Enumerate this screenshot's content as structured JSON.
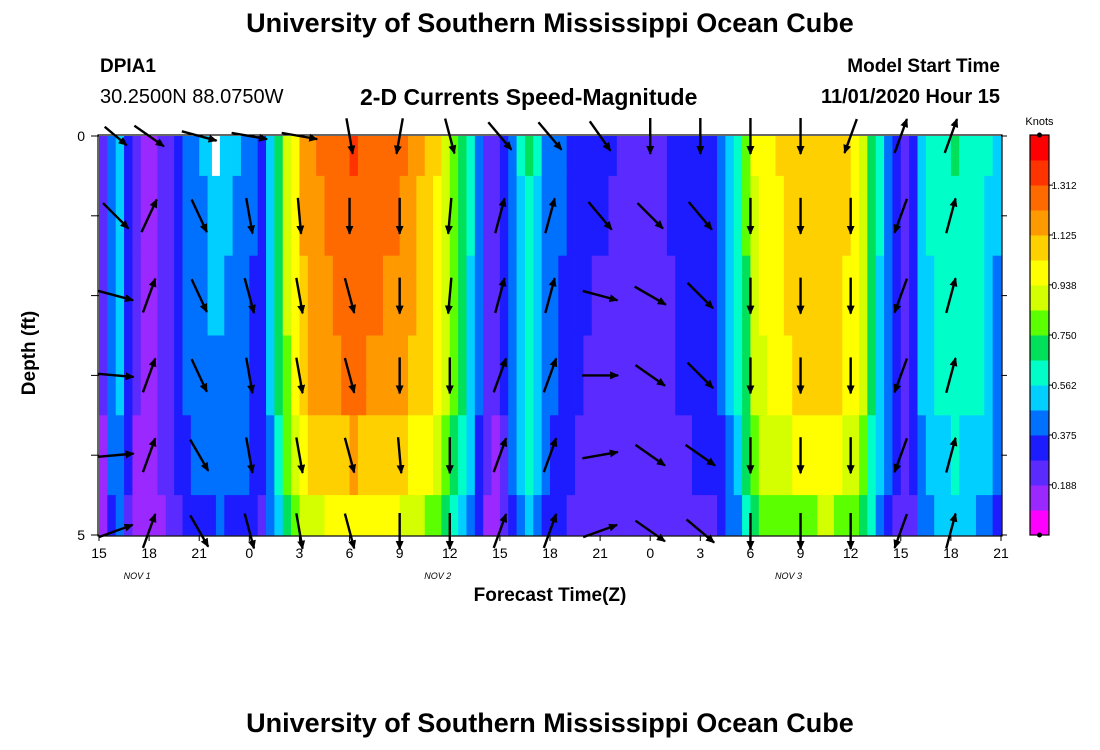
{
  "header": {
    "title": "University of Southern Mississippi Ocean Cube",
    "station": "DPIA1",
    "coords": "30.2500N 88.0750W",
    "subtitle": "2-D Currents Speed-Magnitude",
    "model_label": "Model Start Time",
    "model_time": "11/01/2020 Hour 15"
  },
  "footer": {
    "title": "University of Southern Mississippi Ocean Cube"
  },
  "chart_data": {
    "type": "heatmap",
    "xlabel": "Forecast Time(Z)",
    "ylabel": "Depth (ft)",
    "x_ticks": [
      "15",
      "18",
      "21",
      "0",
      "3",
      "6",
      "9",
      "12",
      "15",
      "18",
      "21",
      "0",
      "3",
      "6",
      "9",
      "12",
      "15",
      "18",
      "21"
    ],
    "date_labels": [
      {
        "label": "NOV 1",
        "tick_index": 1
      },
      {
        "label": "NOV 2",
        "tick_index": 7
      },
      {
        "label": "NOV 3",
        "tick_index": 14
      }
    ],
    "y_ticks": [
      "0",
      "5"
    ],
    "ylim": [
      0,
      5
    ],
    "x_hours": [
      0,
      54
    ],
    "depth_levels_ft": [
      0,
      1,
      2,
      3,
      4,
      5
    ],
    "colorbar": {
      "unit": "Knots",
      "ticks": [
        "1.312",
        "1.125",
        "0.938",
        "0.750",
        "0.562",
        "0.375",
        "0.188"
      ],
      "tick_values": [
        1.312,
        1.125,
        0.938,
        0.75,
        0.562,
        0.375,
        0.188
      ],
      "range": [
        0.0,
        1.5
      ],
      "colors": [
        "#ff00ff",
        "#9b28ff",
        "#5a2aff",
        "#1c1cff",
        "#0070ff",
        "#00cfff",
        "#00ffc8",
        "#00e05a",
        "#5cff00",
        "#d4ff00",
        "#ffff00",
        "#ffd000",
        "#ff9900",
        "#ff6a00",
        "#ff3300",
        "#ff0000"
      ]
    },
    "speed_profile": [
      {
        "h": 0,
        "s": 0.08
      },
      {
        "h": 0.5,
        "s": 0.35
      },
      {
        "h": 1,
        "s": 0.58
      },
      {
        "h": 1.6,
        "s": 0.42
      },
      {
        "h": 2.4,
        "s": 0.15
      },
      {
        "h": 3.2,
        "s": 0.17
      },
      {
        "h": 4.4,
        "s": 0.28
      },
      {
        "h": 5.5,
        "s": 0.44
      },
      {
        "h": 7,
        "s": 0.5
      },
      {
        "h": 8.7,
        "s": 0.46
      },
      {
        "h": 9.7,
        "s": 0.32
      },
      {
        "h": 10.3,
        "s": 0.55
      },
      {
        "h": 11.3,
        "s": 0.9
      },
      {
        "h": 12.3,
        "s": 1.18
      },
      {
        "h": 15,
        "s": 1.32
      },
      {
        "h": 18,
        "s": 1.24
      },
      {
        "h": 20,
        "s": 1.08
      },
      {
        "h": 21.2,
        "s": 0.85
      },
      {
        "h": 22.2,
        "s": 0.6
      },
      {
        "h": 23.5,
        "s": 0.15
      },
      {
        "h": 24.6,
        "s": 0.4
      },
      {
        "h": 25.7,
        "s": 0.68
      },
      {
        "h": 26.8,
        "s": 0.45
      },
      {
        "h": 29,
        "s": 0.3
      },
      {
        "h": 33,
        "s": 0.26
      },
      {
        "h": 37,
        "s": 0.36
      },
      {
        "h": 38.3,
        "s": 0.62
      },
      {
        "h": 39.3,
        "s": 0.96
      },
      {
        "h": 41.5,
        "s": 1.1
      },
      {
        "h": 44,
        "s": 1.12
      },
      {
        "h": 45.6,
        "s": 0.98
      },
      {
        "h": 46.6,
        "s": 0.62
      },
      {
        "h": 47.6,
        "s": 0.35
      },
      {
        "h": 48.5,
        "s": 0.25
      },
      {
        "h": 49.3,
        "s": 0.55
      },
      {
        "h": 51,
        "s": 0.67
      },
      {
        "h": 53,
        "s": 0.6
      },
      {
        "h": 54,
        "s": 0.45
      }
    ],
    "depth_factor": [
      1.0,
      0.98,
      0.96,
      0.94,
      0.86,
      0.76
    ],
    "missing_cells": [
      {
        "h": 7,
        "depth_ft": 0
      }
    ],
    "vectors": {
      "x_hours": [
        1,
        3,
        6,
        9,
        12,
        15,
        18,
        21,
        24,
        27,
        30,
        33,
        36,
        39,
        42,
        45,
        48,
        51
      ],
      "depth_ft": [
        0,
        1,
        2,
        3,
        4,
        5
      ],
      "direction_deg": [
        [
          130,
          125,
          105,
          100,
          100,
          170,
          190,
          165,
          140,
          140,
          145,
          180,
          180,
          180,
          180,
          200,
          20,
          20
        ],
        [
          135,
          25,
          155,
          170,
          175,
          180,
          180,
          185,
          15,
          15,
          140,
          135,
          140,
          180,
          180,
          180,
          200,
          15
        ],
        [
          105,
          20,
          155,
          165,
          170,
          165,
          180,
          185,
          15,
          15,
          105,
          120,
          135,
          180,
          180,
          180,
          200,
          15
        ],
        [
          95,
          20,
          155,
          170,
          170,
          165,
          180,
          180,
          20,
          20,
          90,
          125,
          135,
          180,
          180,
          180,
          200,
          15
        ],
        [
          85,
          20,
          150,
          170,
          170,
          165,
          175,
          180,
          20,
          20,
          80,
          125,
          125,
          180,
          180,
          180,
          200,
          15
        ],
        [
          70,
          20,
          150,
          165,
          170,
          165,
          180,
          180,
          20,
          20,
          70,
          125,
          130,
          180,
          180,
          180,
          200,
          15
        ]
      ],
      "length_factor": [
        [
          0.8,
          1,
          1,
          1,
          1,
          1,
          1,
          1,
          1,
          1,
          1,
          1,
          1,
          1,
          1,
          1,
          1,
          1
        ],
        [
          1,
          1,
          1,
          1,
          1,
          1,
          1,
          1,
          1,
          1,
          1,
          1,
          1,
          1,
          1,
          1,
          1,
          1
        ],
        [
          1,
          1,
          1,
          1,
          1,
          1,
          1,
          1,
          1,
          1,
          1,
          1,
          1,
          1,
          1,
          1,
          1,
          1
        ],
        [
          1,
          1,
          1,
          1,
          1,
          1,
          1,
          1,
          1,
          1,
          1,
          1,
          1,
          1,
          1,
          1,
          1,
          1
        ],
        [
          1,
          1,
          1,
          1,
          1,
          1,
          1,
          1,
          1,
          1,
          1,
          1,
          1,
          1,
          1,
          1,
          1,
          1
        ],
        [
          1,
          1,
          1,
          1,
          1,
          1,
          1,
          1,
          1,
          1,
          1,
          1,
          1,
          1,
          1,
          1,
          1,
          1
        ]
      ]
    }
  }
}
